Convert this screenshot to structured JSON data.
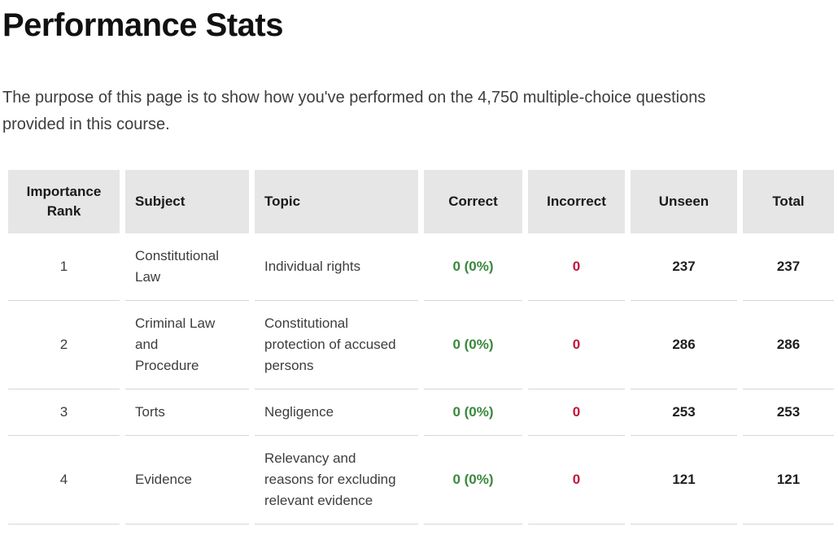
{
  "page": {
    "title": "Performance Stats",
    "intro": "The purpose of this page is to show how you've performed on the 4,750 multiple-choice questions provided in this course."
  },
  "colors": {
    "heading": "#111111",
    "text": "#3d3d3d",
    "number": "#1f1f1f",
    "correct": "#3a873d",
    "incorrect": "#c0143c",
    "header-bg": "#e6e6e6",
    "row-border": "#d6d6d6"
  },
  "table": {
    "columns": [
      {
        "key": "rank",
        "label": "Importance Rank",
        "align": "center"
      },
      {
        "key": "subject",
        "label": "Subject",
        "align": "left"
      },
      {
        "key": "topic",
        "label": "Topic",
        "align": "left"
      },
      {
        "key": "correct",
        "label": "Correct",
        "align": "center"
      },
      {
        "key": "incorrect",
        "label": "Incorrect",
        "align": "center"
      },
      {
        "key": "unseen",
        "label": "Unseen",
        "align": "center"
      },
      {
        "key": "total",
        "label": "Total",
        "align": "center"
      }
    ],
    "rows": [
      {
        "rank": "1",
        "subject": "Constitutional Law",
        "topic": "Individual rights",
        "correct": "0 (0%)",
        "incorrect": "0",
        "unseen": "237",
        "total": "237"
      },
      {
        "rank": "2",
        "subject": "Criminal Law and Procedure",
        "topic": "Constitutional protection of accused persons",
        "correct": "0 (0%)",
        "incorrect": "0",
        "unseen": "286",
        "total": "286"
      },
      {
        "rank": "3",
        "subject": "Torts",
        "topic": "Negligence",
        "correct": "0 (0%)",
        "incorrect": "0",
        "unseen": "253",
        "total": "253"
      },
      {
        "rank": "4",
        "subject": "Evidence",
        "topic": "Relevancy and reasons for excluding relevant evidence",
        "correct": "0 (0%)",
        "incorrect": "0",
        "unseen": "121",
        "total": "121"
      }
    ]
  }
}
